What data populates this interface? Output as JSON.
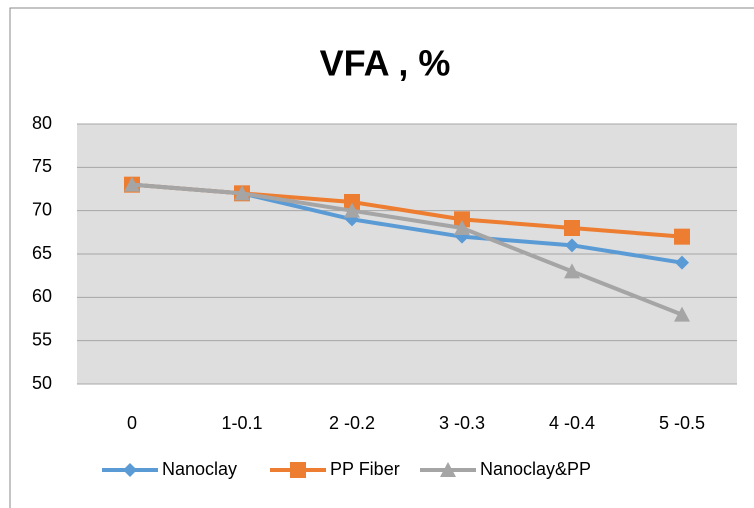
{
  "chart_data": {
    "type": "line",
    "title": "VFA , %",
    "categories": [
      "0",
      "1-0.1",
      "2 -0.2",
      "3 -0.3",
      "4 -0.4",
      "5 -0.5"
    ],
    "series": [
      {
        "name": "Nanoclay",
        "color": "#5b9bd5",
        "marker": "diamond",
        "values": [
          73,
          72,
          69,
          67,
          66,
          64
        ]
      },
      {
        "name": "PP Fiber",
        "color": "#ed7d31",
        "marker": "square",
        "values": [
          73,
          72,
          71,
          69,
          68,
          67
        ]
      },
      {
        "name": "Nanoclay&PP",
        "color": "#a5a5a5",
        "marker": "triangle",
        "values": [
          73,
          72,
          70,
          68,
          63,
          58
        ]
      }
    ],
    "ylim": [
      50,
      80
    ],
    "yticks": [
      50,
      55,
      60,
      65,
      70,
      75,
      80
    ],
    "grid": true,
    "legend": "bottom"
  }
}
